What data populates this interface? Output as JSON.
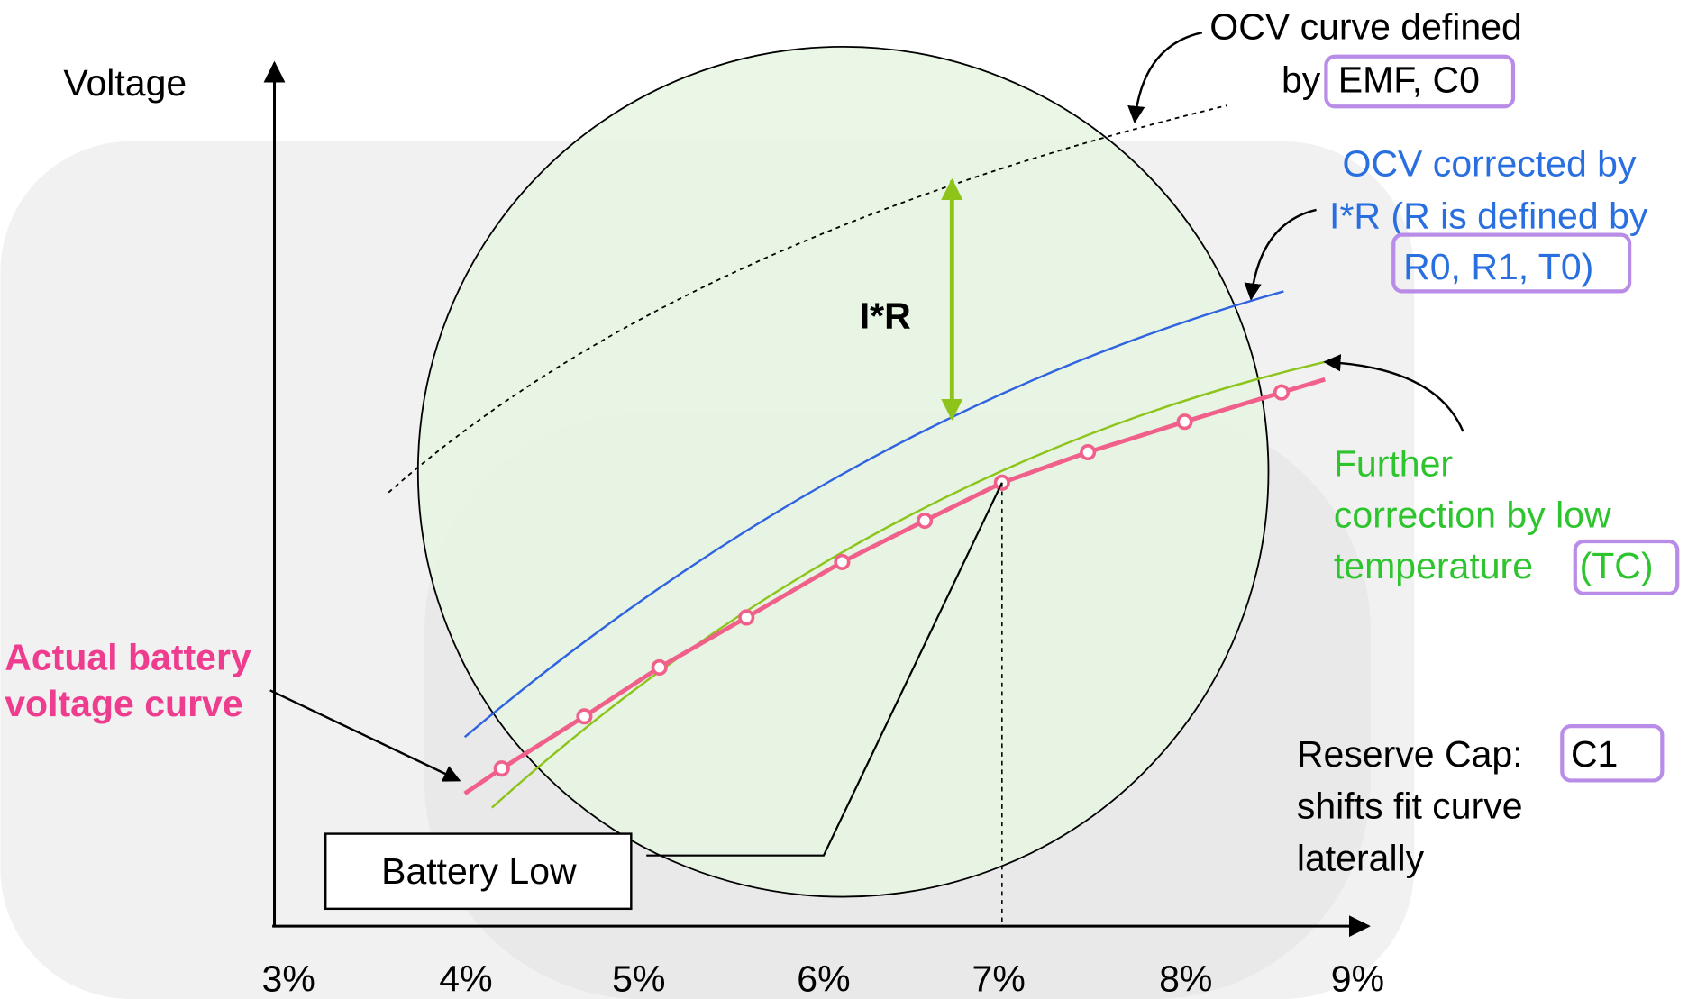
{
  "axes": {
    "y_label": "Voltage",
    "x_ticks": [
      "3%",
      "4%",
      "5%",
      "6%",
      "7%",
      "8%",
      "9%"
    ]
  },
  "ocv": {
    "line1": "OCV curve defined",
    "prefix": "by",
    "box": "EMF, C0"
  },
  "corrected": {
    "line1": "OCV corrected by",
    "line2": "I*R (R is defined by",
    "box": "R0, R1, T0)"
  },
  "further": {
    "line1": "Further",
    "line2": "correction by low",
    "line3": "temperature",
    "box": "(TC)"
  },
  "reserve": {
    "line1": "Reserve Cap:",
    "box": "C1",
    "line2": "shifts fit curve",
    "line3": "laterally"
  },
  "actual": {
    "line1": "Actual battery",
    "line2": "voltage curve"
  },
  "ir_label": "I*R",
  "battery_low": "Battery Low"
}
